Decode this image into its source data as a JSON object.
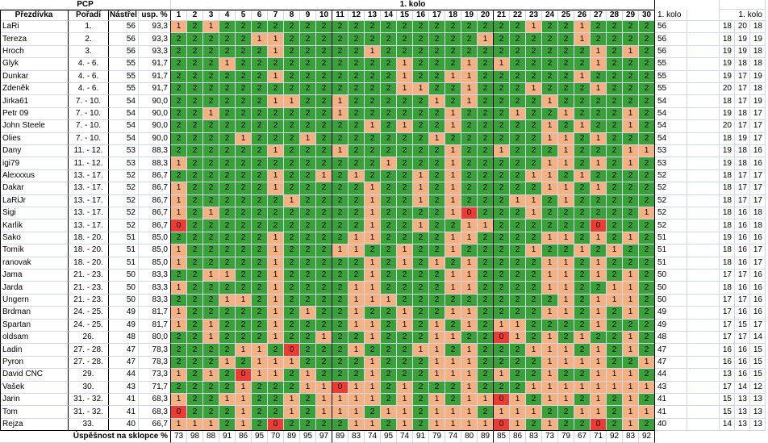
{
  "title": "PCP",
  "round": "1. kolo",
  "headers": {
    "name": "Přezdívka",
    "rank": "Pořadí",
    "score": "Nástřel",
    "pct": "usp. %",
    "shots": [
      1,
      2,
      3,
      4,
      5,
      6,
      7,
      8,
      9,
      10,
      11,
      12,
      13,
      14,
      15,
      16,
      17,
      18,
      19,
      20,
      21,
      22,
      23,
      24,
      25,
      26,
      27,
      28,
      29,
      30
    ],
    "total": "1. kolo",
    "split": "1. kolo"
  },
  "cell_colors": {
    "0": "#ec3b32",
    "1": "#f4b183",
    "2": "#3aa03a"
  },
  "rows": [
    {
      "name": "LaRi",
      "rank": "1.",
      "score": 56,
      "pct": "93,3",
      "shots": [
        1,
        2,
        1,
        2,
        2,
        2,
        2,
        2,
        2,
        2,
        2,
        2,
        2,
        2,
        2,
        2,
        2,
        2,
        2,
        2,
        2,
        2,
        1,
        2,
        2,
        1,
        2,
        2,
        2,
        2
      ],
      "total": 56,
      "split": [
        18,
        20,
        18
      ]
    },
    {
      "name": "Tereza",
      "rank": "2.",
      "score": 56,
      "pct": "93,3",
      "shots": [
        2,
        2,
        2,
        2,
        2,
        1,
        1,
        2,
        2,
        2,
        2,
        2,
        2,
        2,
        2,
        2,
        2,
        2,
        2,
        1,
        2,
        2,
        2,
        2,
        2,
        1,
        2,
        2,
        2,
        2
      ],
      "total": 56,
      "split": [
        18,
        19,
        19
      ]
    },
    {
      "name": "Hroch",
      "rank": "3.",
      "score": 56,
      "pct": "93,3",
      "shots": [
        2,
        2,
        2,
        2,
        2,
        2,
        1,
        2,
        2,
        2,
        2,
        2,
        1,
        2,
        2,
        2,
        2,
        2,
        2,
        2,
        2,
        2,
        2,
        2,
        2,
        2,
        1,
        2,
        1,
        2
      ],
      "total": 56,
      "split": [
        19,
        19,
        18
      ]
    },
    {
      "name": "Glyk",
      "rank": "4. - 6.",
      "score": 55,
      "pct": "91,7",
      "shots": [
        2,
        2,
        2,
        1,
        2,
        2,
        2,
        2,
        2,
        2,
        2,
        2,
        2,
        2,
        1,
        2,
        2,
        2,
        1,
        2,
        1,
        2,
        2,
        2,
        2,
        2,
        1,
        2,
        2,
        2
      ],
      "total": 55,
      "split": [
        19,
        18,
        18
      ]
    },
    {
      "name": "Dunkar",
      "rank": "4. - 6.",
      "score": 55,
      "pct": "91,7",
      "shots": [
        2,
        2,
        2,
        2,
        2,
        2,
        1,
        2,
        2,
        2,
        2,
        2,
        2,
        2,
        1,
        2,
        2,
        1,
        1,
        2,
        2,
        2,
        2,
        2,
        2,
        1,
        2,
        2,
        2,
        2
      ],
      "total": 55,
      "split": [
        19,
        17,
        19
      ]
    },
    {
      "name": "Zdeněk",
      "rank": "4. - 6.",
      "score": 55,
      "pct": "91,7",
      "shots": [
        2,
        2,
        2,
        2,
        2,
        2,
        2,
        2,
        2,
        2,
        2,
        2,
        2,
        2,
        1,
        1,
        2,
        2,
        1,
        2,
        2,
        2,
        1,
        2,
        2,
        2,
        1,
        2,
        2,
        2
      ],
      "total": 55,
      "split": [
        20,
        17,
        18
      ]
    },
    {
      "name": "Jirka61",
      "rank": "7. - 10.",
      "score": 54,
      "pct": "90,0",
      "shots": [
        2,
        2,
        2,
        2,
        2,
        2,
        1,
        1,
        2,
        2,
        1,
        2,
        2,
        2,
        2,
        2,
        1,
        2,
        1,
        2,
        2,
        2,
        2,
        1,
        2,
        2,
        2,
        2,
        2,
        2
      ],
      "total": 54,
      "split": [
        18,
        17,
        19
      ]
    },
    {
      "name": "Petr 09",
      "rank": "7. - 10.",
      "score": 54,
      "pct": "90,0",
      "shots": [
        2,
        2,
        1,
        2,
        2,
        2,
        2,
        2,
        2,
        2,
        1,
        2,
        2,
        2,
        2,
        2,
        2,
        1,
        2,
        2,
        2,
        1,
        2,
        2,
        1,
        2,
        2,
        2,
        1,
        2
      ],
      "total": 54,
      "split": [
        19,
        18,
        17
      ]
    },
    {
      "name": "John Steele",
      "rank": "7. - 10.",
      "score": 54,
      "pct": "90,0",
      "shots": [
        2,
        2,
        2,
        2,
        2,
        2,
        2,
        2,
        2,
        2,
        2,
        2,
        1,
        2,
        1,
        2,
        2,
        1,
        2,
        2,
        2,
        2,
        2,
        1,
        2,
        1,
        2,
        2,
        1,
        2
      ],
      "total": 54,
      "split": [
        20,
        17,
        17
      ]
    },
    {
      "name": "Olies",
      "rank": "7. - 10.",
      "score": 54,
      "pct": "90,0",
      "shots": [
        2,
        2,
        2,
        2,
        1,
        2,
        2,
        2,
        1,
        2,
        2,
        2,
        2,
        2,
        2,
        2,
        1,
        2,
        2,
        2,
        2,
        2,
        2,
        1,
        1,
        2,
        1,
        2,
        2,
        2
      ],
      "total": 54,
      "split": [
        18,
        19,
        17
      ]
    },
    {
      "name": "Dany",
      "rank": "11. - 12.",
      "score": 53,
      "pct": "88,3",
      "shots": [
        2,
        2,
        2,
        2,
        2,
        2,
        1,
        2,
        2,
        2,
        1,
        2,
        2,
        2,
        2,
        2,
        2,
        1,
        2,
        2,
        1,
        2,
        2,
        2,
        1,
        2,
        2,
        2,
        1,
        1
      ],
      "total": 53,
      "split": [
        19,
        18,
        16
      ]
    },
    {
      "name": "igi79",
      "rank": "11. - 12.",
      "score": 53,
      "pct": "88,3",
      "shots": [
        1,
        2,
        2,
        2,
        2,
        2,
        2,
        2,
        2,
        2,
        2,
        2,
        2,
        1,
        2,
        2,
        2,
        1,
        2,
        2,
        2,
        2,
        2,
        1,
        1,
        2,
        1,
        2,
        1,
        2
      ],
      "total": 53,
      "split": [
        19,
        18,
        16
      ]
    },
    {
      "name": "Alexxxus",
      "rank": "13. - 17.",
      "score": 52,
      "pct": "86,7",
      "shots": [
        2,
        2,
        2,
        2,
        2,
        2,
        1,
        2,
        2,
        1,
        2,
        1,
        2,
        2,
        2,
        1,
        2,
        1,
        2,
        2,
        2,
        2,
        1,
        1,
        2,
        1,
        2,
        2,
        2,
        2
      ],
      "total": 52,
      "split": [
        18,
        17,
        17
      ]
    },
    {
      "name": "Dakar",
      "rank": "13. - 17.",
      "score": 52,
      "pct": "86,7",
      "shots": [
        1,
        2,
        2,
        2,
        2,
        2,
        1,
        2,
        2,
        2,
        2,
        2,
        1,
        2,
        2,
        1,
        2,
        1,
        2,
        2,
        2,
        2,
        2,
        1,
        1,
        2,
        1,
        2,
        2,
        2
      ],
      "total": 52,
      "split": [
        18,
        17,
        17
      ]
    },
    {
      "name": "LaRiJr",
      "rank": "13. - 17.",
      "score": 52,
      "pct": "86,7",
      "shots": [
        1,
        2,
        2,
        2,
        2,
        2,
        2,
        1,
        2,
        2,
        2,
        2,
        1,
        2,
        2,
        1,
        2,
        1,
        2,
        2,
        2,
        1,
        1,
        2,
        1,
        2,
        2,
        2,
        2,
        2
      ],
      "total": 52,
      "split": [
        18,
        17,
        17
      ]
    },
    {
      "name": "Sigi",
      "rank": "13. - 17.",
      "score": 52,
      "pct": "86,7",
      "shots": [
        1,
        2,
        1,
        2,
        2,
        2,
        2,
        2,
        2,
        2,
        2,
        2,
        1,
        2,
        2,
        2,
        2,
        1,
        0,
        2,
        2,
        2,
        1,
        2,
        2,
        2,
        2,
        2,
        2,
        1
      ],
      "total": 52,
      "split": [
        18,
        16,
        18
      ]
    },
    {
      "name": "Karlik",
      "rank": "13. - 17.",
      "score": 52,
      "pct": "86,7",
      "shots": [
        0,
        2,
        2,
        2,
        2,
        2,
        2,
        2,
        2,
        2,
        2,
        2,
        1,
        2,
        2,
        1,
        2,
        2,
        1,
        1,
        2,
        2,
        2,
        2,
        2,
        2,
        0,
        2,
        2,
        2
      ],
      "total": 52,
      "split": [
        18,
        16,
        18
      ]
    },
    {
      "name": "Sako",
      "rank": "18. - 20.",
      "score": 51,
      "pct": "85,0",
      "shots": [
        2,
        2,
        2,
        2,
        2,
        2,
        1,
        2,
        2,
        2,
        2,
        1,
        1,
        2,
        2,
        2,
        2,
        1,
        1,
        2,
        2,
        2,
        2,
        1,
        1,
        2,
        1,
        2,
        1,
        2
      ],
      "total": 51,
      "split": [
        19,
        16,
        16
      ]
    },
    {
      "name": "Tomík",
      "rank": "18. - 20.",
      "score": 51,
      "pct": "85,0",
      "shots": [
        1,
        2,
        2,
        2,
        2,
        2,
        1,
        2,
        2,
        2,
        1,
        1,
        2,
        2,
        1,
        2,
        2,
        1,
        2,
        2,
        2,
        2,
        1,
        2,
        2,
        1,
        2,
        1,
        2,
        2
      ],
      "total": 51,
      "split": [
        18,
        16,
        17
      ]
    },
    {
      "name": "ranovak",
      "rank": "18. - 20.",
      "score": 51,
      "pct": "85,0",
      "shots": [
        1,
        2,
        2,
        2,
        2,
        2,
        1,
        2,
        2,
        2,
        2,
        2,
        1,
        2,
        1,
        2,
        1,
        2,
        1,
        2,
        2,
        2,
        2,
        1,
        1,
        2,
        1,
        2,
        2,
        2
      ],
      "total": 51,
      "split": [
        18,
        16,
        17
      ]
    },
    {
      "name": "Jama",
      "rank": "21. - 23.",
      "score": 50,
      "pct": "83,3",
      "shots": [
        2,
        2,
        1,
        1,
        2,
        2,
        1,
        2,
        2,
        2,
        2,
        2,
        1,
        2,
        2,
        2,
        2,
        1,
        1,
        2,
        2,
        2,
        2,
        1,
        1,
        2,
        1,
        2,
        1,
        2
      ],
      "total": 50,
      "split": [
        17,
        17,
        16
      ]
    },
    {
      "name": "Jarda",
      "rank": "21. - 23.",
      "score": 50,
      "pct": "83,3",
      "shots": [
        1,
        2,
        2,
        2,
        2,
        2,
        1,
        2,
        2,
        2,
        2,
        1,
        1,
        2,
        2,
        2,
        2,
        1,
        1,
        2,
        2,
        2,
        2,
        1,
        1,
        2,
        2,
        1,
        1,
        2
      ],
      "total": 50,
      "split": [
        18,
        16,
        16
      ]
    },
    {
      "name": "Ungern",
      "rank": "21. - 23.",
      "score": 50,
      "pct": "83,3",
      "shots": [
        2,
        2,
        2,
        1,
        1,
        2,
        1,
        2,
        2,
        2,
        2,
        1,
        1,
        1,
        2,
        2,
        2,
        2,
        2,
        2,
        2,
        2,
        2,
        2,
        1,
        2,
        1,
        1,
        1,
        2
      ],
      "total": 50,
      "split": [
        17,
        17,
        16
      ]
    },
    {
      "name": "Brdman",
      "rank": "24. - 25.",
      "score": 49,
      "pct": "81,7",
      "shots": [
        1,
        2,
        2,
        2,
        2,
        2,
        1,
        2,
        1,
        2,
        2,
        1,
        2,
        2,
        1,
        2,
        2,
        1,
        1,
        2,
        2,
        2,
        2,
        1,
        1,
        2,
        1,
        2,
        1,
        2
      ],
      "total": 49,
      "split": [
        17,
        16,
        16
      ]
    },
    {
      "name": "Spartan",
      "rank": "24. - 25.",
      "score": 49,
      "pct": "81,7",
      "shots": [
        1,
        2,
        1,
        2,
        2,
        2,
        1,
        2,
        2,
        2,
        2,
        1,
        1,
        2,
        1,
        2,
        1,
        2,
        1,
        2,
        1,
        1,
        2,
        2,
        2,
        2,
        1,
        2,
        2,
        2
      ],
      "total": 49,
      "split": [
        17,
        15,
        17
      ]
    },
    {
      "name": "oldsam",
      "rank": "26.",
      "score": 48,
      "pct": "80,0",
      "shots": [
        2,
        2,
        1,
        2,
        2,
        2,
        1,
        2,
        2,
        1,
        2,
        2,
        1,
        2,
        2,
        2,
        1,
        1,
        2,
        2,
        0,
        1,
        2,
        1,
        2,
        1,
        2,
        2,
        1,
        2
      ],
      "total": 48,
      "split": [
        17,
        17,
        14
      ]
    },
    {
      "name": "Ladin",
      "rank": "27. - 28.",
      "score": 47,
      "pct": "78,3",
      "shots": [
        2,
        2,
        2,
        2,
        1,
        1,
        2,
        0,
        2,
        2,
        2,
        1,
        2,
        2,
        2,
        1,
        1,
        2,
        1,
        2,
        2,
        2,
        1,
        1,
        1,
        2,
        1,
        2,
        1,
        2
      ],
      "total": 47,
      "split": [
        16,
        16,
        15
      ]
    },
    {
      "name": "Pyron",
      "rank": "27. - 28.",
      "score": 47,
      "pct": "78,3",
      "shots": [
        2,
        2,
        2,
        1,
        2,
        1,
        1,
        1,
        2,
        2,
        2,
        2,
        1,
        2,
        2,
        2,
        1,
        1,
        1,
        2,
        2,
        2,
        2,
        1,
        1,
        1,
        1,
        2,
        2,
        1
      ],
      "total": 47,
      "split": [
        16,
        16,
        15
      ]
    },
    {
      "name": "David CNC",
      "rank": "29.",
      "score": 44,
      "pct": "73,3",
      "shots": [
        1,
        2,
        1,
        2,
        0,
        1,
        1,
        2,
        1,
        2,
        2,
        2,
        1,
        2,
        2,
        2,
        1,
        1,
        1,
        2,
        1,
        2,
        2,
        1,
        2,
        2,
        1,
        1,
        1,
        2
      ],
      "total": 44,
      "split": [
        13,
        16,
        15
      ]
    },
    {
      "name": "Vašek",
      "rank": "30.",
      "score": 43,
      "pct": "71,7",
      "shots": [
        2,
        2,
        2,
        2,
        1,
        2,
        2,
        2,
        1,
        1,
        0,
        1,
        1,
        2,
        1,
        2,
        2,
        2,
        1,
        2,
        2,
        2,
        1,
        1,
        1,
        1,
        1,
        1,
        1,
        1
      ],
      "total": 43,
      "split": [
        17,
        14,
        12
      ]
    },
    {
      "name": "Jarin",
      "rank": "31. - 32.",
      "score": 41,
      "pct": "68,3",
      "shots": [
        1,
        2,
        2,
        1,
        1,
        2,
        2,
        1,
        2,
        1,
        1,
        1,
        1,
        2,
        1,
        2,
        1,
        2,
        1,
        1,
        0,
        1,
        2,
        1,
        1,
        2,
        1,
        2,
        1,
        2
      ],
      "total": 41,
      "split": [
        15,
        13,
        13
      ]
    },
    {
      "name": "Tom",
      "rank": "31. - 32.",
      "score": 41,
      "pct": "68,3",
      "shots": [
        0,
        2,
        2,
        2,
        1,
        2,
        2,
        1,
        2,
        1,
        1,
        1,
        2,
        1,
        1,
        2,
        1,
        1,
        1,
        2,
        1,
        1,
        1,
        2,
        2,
        1,
        1,
        2,
        1,
        1
      ],
      "total": 41,
      "split": [
        15,
        13,
        13
      ]
    },
    {
      "name": "Rejza",
      "rank": "33.",
      "score": 40,
      "pct": "66,7",
      "shots": [
        1,
        1,
        1,
        2,
        1,
        2,
        0,
        2,
        2,
        2,
        2,
        1,
        1,
        2,
        1,
        2,
        1,
        1,
        1,
        1,
        0,
        1,
        2,
        1,
        2,
        2,
        0,
        2,
        1,
        2
      ],
      "total": 40,
      "split": [
        14,
        13,
        13
      ]
    }
  ],
  "footer": {
    "label": "Úspěšnost na sklopce %",
    "values": [
      73,
      98,
      88,
      91,
      86,
      95,
      70,
      89,
      95,
      97,
      89,
      83,
      74,
      95,
      74,
      91,
      79,
      74,
      80,
      89,
      85,
      86,
      83,
      73,
      79,
      67,
      71,
      92,
      83,
      92
    ]
  }
}
